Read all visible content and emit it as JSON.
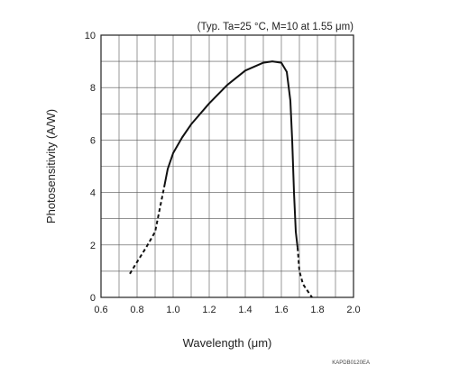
{
  "chart_data": {
    "type": "line",
    "title": "",
    "annotation": "(Typ. Ta=25 °C, M=10 at 1.55 μm)",
    "xlabel": "Wavelength (μm)",
    "ylabel": "Photosensitivity (A/W)",
    "code": "KAPDB0120EA",
    "xlim": [
      0.6,
      2.0
    ],
    "ylim": [
      0,
      10
    ],
    "x_ticks": [
      "0.6",
      "0.8",
      "1.0",
      "1.2",
      "1.4",
      "1.6",
      "1.8",
      "2.0"
    ],
    "y_ticks": [
      "0",
      "2",
      "4",
      "6",
      "8",
      "10"
    ],
    "grid": true,
    "series": [
      {
        "segment": "dashed",
        "x": [
          0.76,
          0.8,
          0.85,
          0.9,
          0.95
        ],
        "y": [
          0.9,
          1.35,
          1.9,
          2.5,
          4.2
        ]
      },
      {
        "segment": "solid",
        "x": [
          0.95,
          0.97,
          1.0,
          1.05,
          1.1,
          1.2,
          1.3,
          1.4,
          1.5,
          1.55,
          1.6,
          1.63,
          1.65,
          1.66,
          1.67,
          1.68,
          1.69
        ],
        "y": [
          4.2,
          4.9,
          5.5,
          6.1,
          6.6,
          7.4,
          8.1,
          8.65,
          8.95,
          9.0,
          8.95,
          8.6,
          7.5,
          6.0,
          4.0,
          2.5,
          1.9
        ]
      },
      {
        "segment": "dashed",
        "x": [
          1.69,
          1.7,
          1.72,
          1.75,
          1.77
        ],
        "y": [
          1.9,
          1.0,
          0.5,
          0.2,
          0.0
        ]
      }
    ]
  }
}
